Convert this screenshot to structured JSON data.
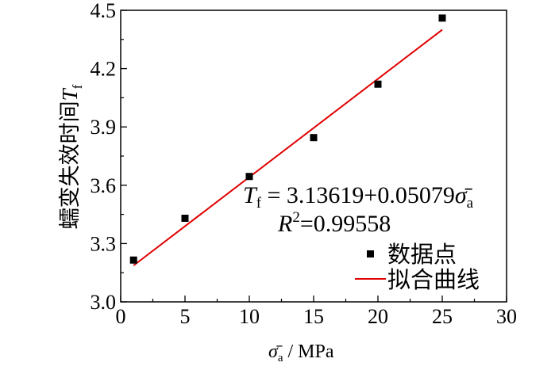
{
  "chart_data": {
    "type": "scatter",
    "x_label": {
      "symbol": "σ̄",
      "subscript": "a",
      "unit_text": " / MPa"
    },
    "y_label": {
      "text": "蠕变失效时间",
      "symbol": "T",
      "subscript": "f"
    },
    "x_ticks": [
      0,
      5,
      10,
      15,
      20,
      25,
      30
    ],
    "y_ticks": [
      "3.0",
      "3.3",
      "3.6",
      "3.9",
      "4.2",
      "4.5"
    ],
    "xlim": [
      0,
      30
    ],
    "ylim": [
      3.0,
      4.5
    ],
    "grid": false,
    "legend_position": "bottom-right",
    "series": [
      {
        "name": "数据点",
        "kind": "points",
        "color": "#000000",
        "x": [
          1,
          5,
          10,
          15,
          20,
          25
        ],
        "y": [
          3.215,
          3.43,
          3.645,
          3.845,
          4.12,
          4.46
        ]
      },
      {
        "name": "拟合曲线",
        "kind": "line",
        "color": "#e00000",
        "x": [
          1,
          25
        ],
        "y": [
          3.187,
          4.4
        ]
      }
    ],
    "annotation": {
      "eq_symbol": "T",
      "eq_subscript": "f",
      "eq_text": " = 3.13619+0.05079",
      "eq_var_symbol": "σ̄",
      "eq_var_subscript": "a",
      "r2_symbol": "R",
      "r2_exponent": "2",
      "r2_text": "=0.99558"
    }
  }
}
